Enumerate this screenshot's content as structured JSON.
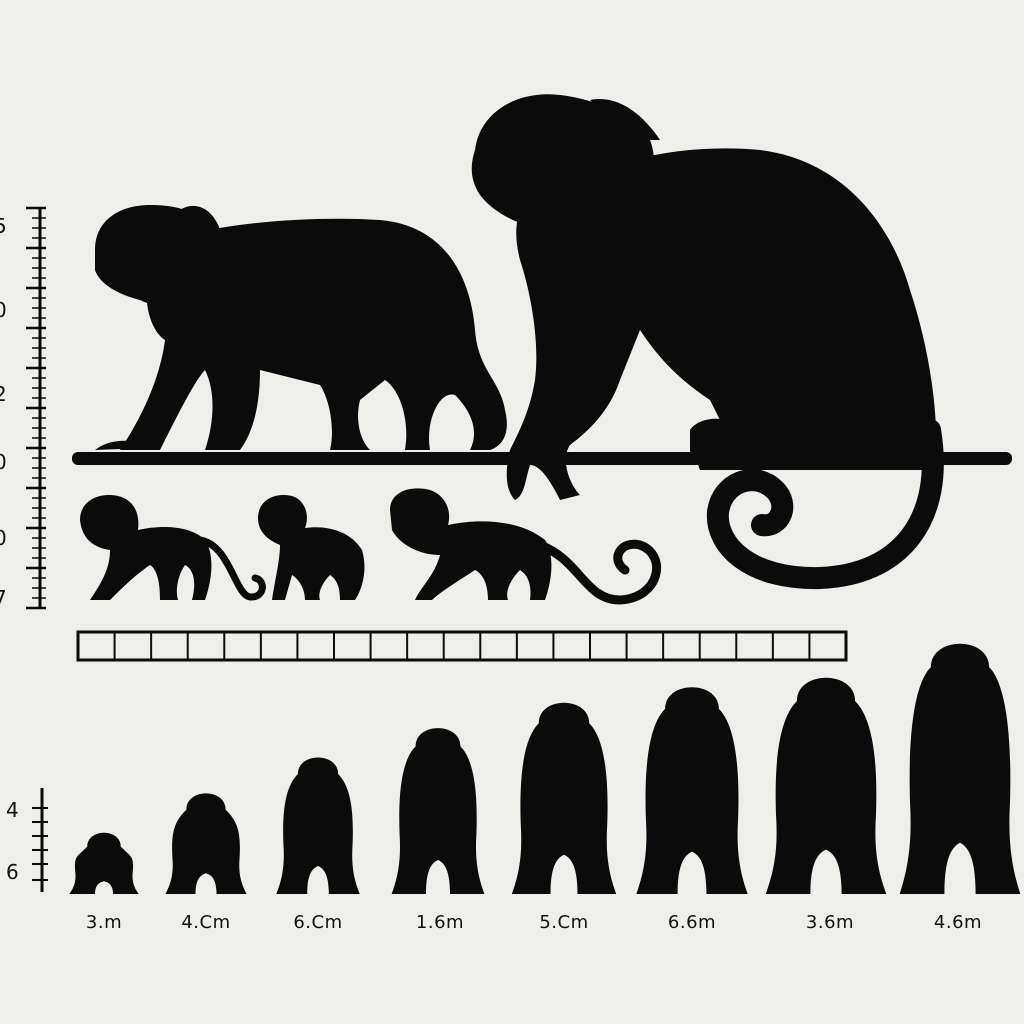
{
  "left_scale": {
    "labels": [
      "5",
      "0",
      "2",
      "0",
      "0",
      "7"
    ]
  },
  "bottom_scale": {
    "labels": [
      "4",
      "6"
    ]
  },
  "size_labels": [
    "3.m",
    "4.Cm",
    "6.Cm",
    "1.6m",
    "5.Cm",
    "6.6m",
    "3.6m",
    "4.6m"
  ],
  "ruler": {
    "segments": 21
  },
  "colors": {
    "background": "#eeeeea",
    "silhouette": "#0b0b0b"
  },
  "icons": [
    "monkey-silhouette-icon",
    "ruler-icon",
    "scale-bar-icon"
  ]
}
